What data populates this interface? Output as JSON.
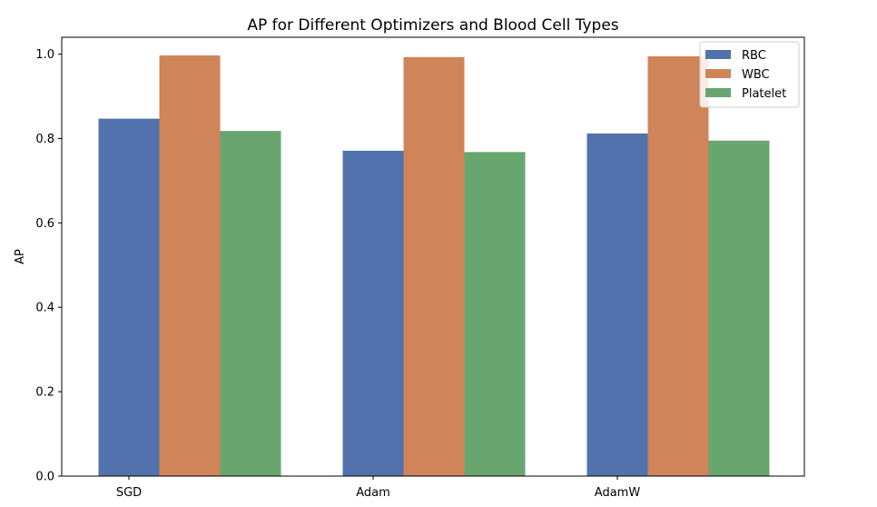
{
  "chart_data": {
    "type": "bar",
    "title": "AP for Different Optimizers and Blood Cell Types",
    "xlabel": "",
    "ylabel": "AP",
    "categories": [
      "SGD",
      "Adam",
      "AdamW"
    ],
    "series": [
      {
        "name": "RBC",
        "color": "#5172ac",
        "values": [
          0.847,
          0.771,
          0.812
        ]
      },
      {
        "name": "WBC",
        "color": "#d0845a",
        "values": [
          0.997,
          0.993,
          0.995
        ]
      },
      {
        "name": "Platelet",
        "color": "#69a56e",
        "values": [
          0.818,
          0.768,
          0.795
        ]
      }
    ],
    "ylim": [
      0,
      1.04
    ],
    "yticks": [
      0.0,
      0.2,
      0.4,
      0.6,
      0.8,
      1.0
    ],
    "ytick_labels": [
      "0.0",
      "0.2",
      "0.4",
      "0.6",
      "0.8",
      "1.0"
    ],
    "grid": false,
    "legend_position": "top-right"
  }
}
